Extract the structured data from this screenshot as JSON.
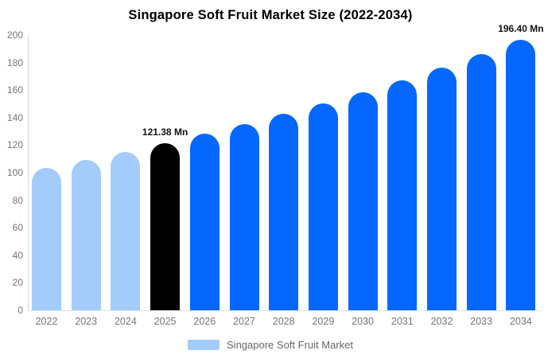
{
  "chart_data": {
    "type": "bar",
    "title": "Singapore Soft Fruit Market Size (2022-2034)",
    "categories": [
      "2022",
      "2023",
      "2024",
      "2025",
      "2026",
      "2027",
      "2028",
      "2029",
      "2030",
      "2031",
      "2032",
      "2033",
      "2034"
    ],
    "values": [
      103.4,
      109.1,
      115.2,
      121.38,
      128.1,
      135.1,
      142.5,
      150.4,
      158.6,
      167.3,
      176.5,
      186.2,
      196.4
    ],
    "bar_colors": [
      "#A3CCFA",
      "#A3CCFA",
      "#A3CCFA",
      "#000000",
      "#0667FE",
      "#0667FE",
      "#0667FE",
      "#0667FE",
      "#0667FE",
      "#0667FE",
      "#0667FE",
      "#0667FE",
      "#0667FE"
    ],
    "annotations": [
      {
        "category": "2025",
        "text": "121.38 Mn"
      },
      {
        "category": "2034",
        "text": "196.40 Mn"
      }
    ],
    "ylim": [
      0,
      200
    ],
    "yticks": [
      0,
      20,
      40,
      60,
      80,
      100,
      120,
      140,
      160,
      180,
      200
    ],
    "grid": "off",
    "legend_position": "bottom-center",
    "legend": "Singapore Soft Fruit Market"
  },
  "colors": {
    "light_blue": "#A3CCFA",
    "bright_blue": "#0667FE",
    "highlight_black": "#000000",
    "axis_text": "#757575",
    "axis_line": "#d9d9d9",
    "title_text": "#000000",
    "annotation_text": "#111111",
    "legend_text": "#666666",
    "background": "#ffffff"
  }
}
